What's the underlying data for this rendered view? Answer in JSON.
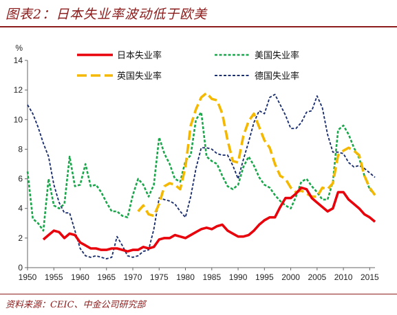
{
  "header": {
    "title": "图表2：日本失业率波动低于欧美"
  },
  "footer": {
    "source": "资料来源：CEIC、中金公司研究部"
  },
  "chart_data": {
    "type": "line",
    "title": "",
    "xlabel": "",
    "ylabel": "%",
    "xlim": [
      1950,
      2016
    ],
    "ylim": [
      0,
      14
    ],
    "x_ticks": [
      1950,
      1955,
      1960,
      1965,
      1970,
      1975,
      1980,
      1985,
      1990,
      1995,
      2000,
      2005,
      2010,
      2015
    ],
    "y_ticks": [
      0,
      2,
      4,
      6,
      8,
      10,
      12,
      14
    ],
    "grid": false,
    "legend_position": "top",
    "series": [
      {
        "name": "日本失业率",
        "color": "#e8000b",
        "style": "solid",
        "x": [
          1953,
          1954,
          1955,
          1956,
          1957,
          1958,
          1959,
          1960,
          1961,
          1962,
          1963,
          1964,
          1965,
          1966,
          1967,
          1968,
          1969,
          1970,
          1971,
          1972,
          1973,
          1974,
          1975,
          1976,
          1977,
          1978,
          1979,
          1980,
          1981,
          1982,
          1983,
          1984,
          1985,
          1986,
          1987,
          1988,
          1989,
          1990,
          1991,
          1992,
          1993,
          1994,
          1995,
          1996,
          1997,
          1998,
          1999,
          2000,
          2001,
          2002,
          2003,
          2004,
          2005,
          2006,
          2007,
          2008,
          2009,
          2010,
          2011,
          2012,
          2013,
          2014,
          2015,
          2016
        ],
        "y": [
          1.9,
          2.2,
          2.5,
          2.4,
          2.0,
          2.3,
          2.2,
          1.7,
          1.5,
          1.3,
          1.3,
          1.2,
          1.2,
          1.3,
          1.3,
          1.2,
          1.1,
          1.2,
          1.2,
          1.4,
          1.3,
          1.4,
          1.9,
          2.0,
          2.0,
          2.2,
          2.1,
          2.0,
          2.2,
          2.4,
          2.6,
          2.7,
          2.6,
          2.8,
          2.9,
          2.5,
          2.3,
          2.1,
          2.1,
          2.2,
          2.5,
          2.9,
          3.2,
          3.4,
          3.4,
          4.1,
          4.7,
          4.7,
          5.0,
          5.4,
          5.3,
          4.7,
          4.4,
          4.1,
          3.8,
          4.0,
          5.1,
          5.1,
          4.6,
          4.3,
          4.0,
          3.6,
          3.4,
          3.1
        ]
      },
      {
        "name": "美国失业率",
        "color": "#1aa64a",
        "style": "dotted",
        "x": [
          1950,
          1951,
          1952,
          1953,
          1954,
          1955,
          1956,
          1957,
          1958,
          1959,
          1960,
          1961,
          1962,
          1963,
          1964,
          1965,
          1966,
          1967,
          1968,
          1969,
          1970,
          1971,
          1972,
          1973,
          1974,
          1975,
          1976,
          1977,
          1978,
          1979,
          1980,
          1981,
          1982,
          1983,
          1984,
          1985,
          1986,
          1987,
          1988,
          1989,
          1990,
          1991,
          1992,
          1993,
          1994,
          1995,
          1996,
          1997,
          1998,
          1999,
          2000,
          2001,
          2002,
          2003,
          2004,
          2005,
          2006,
          2007,
          2008,
          2009,
          2010,
          2011,
          2012,
          2013,
          2014,
          2015,
          2016
        ],
        "y": [
          6.5,
          3.3,
          3.0,
          2.5,
          6.0,
          4.2,
          4.0,
          4.3,
          7.5,
          5.5,
          5.6,
          7.0,
          5.5,
          5.6,
          5.1,
          4.4,
          3.8,
          3.8,
          3.5,
          3.4,
          4.9,
          6.0,
          5.6,
          4.8,
          5.6,
          8.8,
          7.7,
          7.0,
          6.0,
          5.8,
          7.2,
          7.6,
          10.0,
          10.5,
          7.5,
          7.2,
          7.0,
          6.2,
          5.5,
          5.3,
          5.6,
          6.8,
          7.5,
          6.9,
          6.1,
          5.6,
          5.4,
          4.9,
          4.5,
          4.2,
          4.0,
          4.8,
          5.8,
          6.0,
          5.5,
          5.1,
          4.6,
          4.6,
          5.8,
          9.3,
          9.6,
          9.0,
          8.1,
          7.4,
          6.2,
          5.3,
          4.9
        ]
      },
      {
        "name": "英国失业率",
        "color": "#f5b800",
        "style": "dashed",
        "x": [
          1971,
          1972,
          1973,
          1974,
          1975,
          1976,
          1977,
          1978,
          1979,
          1980,
          1981,
          1982,
          1983,
          1984,
          1985,
          1986,
          1987,
          1988,
          1989,
          1990,
          1991,
          1992,
          1993,
          1994,
          1995,
          1996,
          1997,
          1998,
          1999,
          2000,
          2001,
          2002,
          2003,
          2004,
          2005,
          2006,
          2007,
          2008,
          2009,
          2010,
          2011,
          2012,
          2013,
          2014,
          2015,
          2016
        ],
        "y": [
          3.8,
          4.2,
          3.6,
          3.5,
          4.3,
          5.5,
          5.7,
          5.6,
          5.3,
          6.8,
          9.6,
          10.7,
          11.5,
          11.8,
          11.4,
          11.3,
          10.4,
          8.6,
          7.2,
          7.1,
          8.9,
          9.9,
          10.4,
          9.5,
          8.6,
          8.1,
          7.0,
          6.2,
          6.0,
          5.4,
          5.1,
          5.2,
          5.0,
          4.8,
          4.8,
          5.4,
          5.3,
          5.7,
          7.6,
          7.9,
          8.1,
          7.9,
          7.6,
          6.2,
          5.4,
          4.9
        ]
      },
      {
        "name": "德国失业率",
        "color": "#1c2f6e",
        "style": "dashed-fine",
        "x": [
          1950,
          1951,
          1952,
          1953,
          1954,
          1955,
          1956,
          1957,
          1958,
          1959,
          1960,
          1961,
          1962,
          1963,
          1964,
          1965,
          1966,
          1967,
          1968,
          1969,
          1970,
          1971,
          1972,
          1973,
          1974,
          1975,
          1976,
          1977,
          1978,
          1979,
          1980,
          1981,
          1982,
          1983,
          1984,
          1985,
          1986,
          1987,
          1988,
          1989,
          1990,
          1991,
          1992,
          1993,
          1994,
          1995,
          1996,
          1997,
          1998,
          1999,
          2000,
          2001,
          2002,
          2003,
          2004,
          2005,
          2006,
          2007,
          2008,
          2009,
          2010,
          2011,
          2012,
          2013,
          2014,
          2015,
          2016
        ],
        "y": [
          11.0,
          10.4,
          9.5,
          8.4,
          7.5,
          5.6,
          4.4,
          3.7,
          3.7,
          2.5,
          1.3,
          0.8,
          0.7,
          0.8,
          0.7,
          0.6,
          0.7,
          2.1,
          1.5,
          0.8,
          0.7,
          0.8,
          1.1,
          1.2,
          2.6,
          4.7,
          4.6,
          4.5,
          4.3,
          3.8,
          3.4,
          4.8,
          6.7,
          8.1,
          8.1,
          8.0,
          7.7,
          7.6,
          7.6,
          6.9,
          6.0,
          7.3,
          8.5,
          9.8,
          10.6,
          10.4,
          11.5,
          11.7,
          11.0,
          10.3,
          9.4,
          9.4,
          9.8,
          10.5,
          10.6,
          11.6,
          10.8,
          9.0,
          7.8,
          7.8,
          7.7,
          7.1,
          6.8,
          6.9,
          6.7,
          6.4,
          6.1
        ]
      }
    ]
  }
}
